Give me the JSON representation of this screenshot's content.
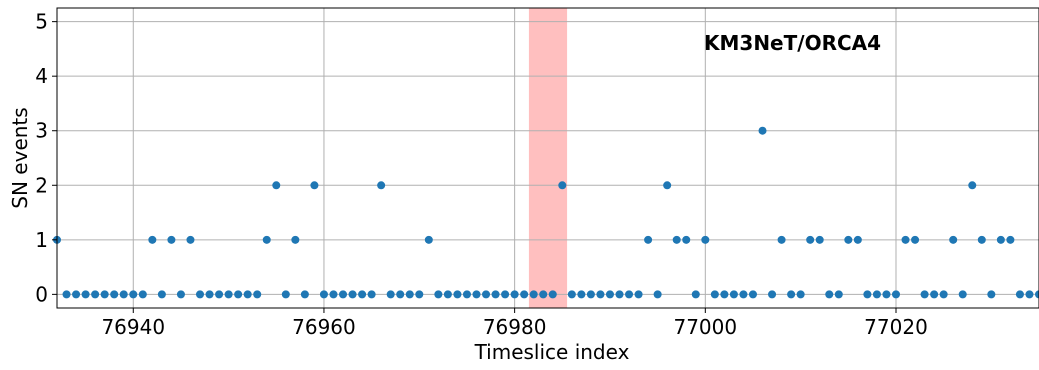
{
  "chart_data": {
    "type": "scatter",
    "title": "KM3NeT/ORCA4",
    "xlabel": "Timeslice index",
    "ylabel": "SN events",
    "xlim": [
      76932,
      77035
    ],
    "ylim": [
      -0.25,
      5.25
    ],
    "xticks": [
      76940,
      76960,
      76980,
      77000,
      77020
    ],
    "yticks": [
      0,
      1,
      2,
      3,
      4,
      5
    ],
    "grid": true,
    "marker_color": "#1f77b4",
    "highlight_region": {
      "x_start": 76981.5,
      "x_end": 76985.5,
      "color": "#ffbfbf"
    },
    "x": [
      76932,
      76933,
      76934,
      76935,
      76936,
      76937,
      76938,
      76939,
      76940,
      76941,
      76942,
      76943,
      76944,
      76945,
      76946,
      76947,
      76948,
      76949,
      76950,
      76951,
      76952,
      76953,
      76954,
      76955,
      76956,
      76957,
      76958,
      76959,
      76960,
      76961,
      76962,
      76963,
      76964,
      76965,
      76966,
      76967,
      76968,
      76969,
      76970,
      76971,
      76972,
      76973,
      76974,
      76975,
      76976,
      76977,
      76978,
      76979,
      76980,
      76981,
      76982,
      76983,
      76984,
      76985,
      76986,
      76987,
      76988,
      76989,
      76990,
      76991,
      76992,
      76993,
      76994,
      76995,
      76996,
      76997,
      76998,
      76999,
      77000,
      77001,
      77002,
      77003,
      77004,
      77005,
      77006,
      77007,
      77008,
      77009,
      77010,
      77011,
      77012,
      77013,
      77014,
      77015,
      77016,
      77017,
      77018,
      77019,
      77020,
      77021,
      77022,
      77023,
      77024,
      77025,
      77026,
      77027,
      77028,
      77029,
      77030,
      77031,
      77032,
      77033,
      77034,
      77035
    ],
    "y": [
      1,
      0,
      0,
      0,
      0,
      0,
      0,
      0,
      0,
      0,
      1,
      0,
      1,
      0,
      1,
      0,
      0,
      0,
      0,
      0,
      0,
      0,
      1,
      2,
      0,
      1,
      0,
      2,
      0,
      0,
      0,
      0,
      0,
      0,
      2,
      0,
      0,
      0,
      0,
      1,
      0,
      0,
      0,
      0,
      0,
      0,
      0,
      0,
      0,
      0,
      0,
      0,
      0,
      2,
      0,
      0,
      0,
      0,
      0,
      0,
      0,
      0,
      1,
      0,
      2,
      1,
      1,
      0,
      1,
      0,
      0,
      0,
      0,
      0,
      3,
      0,
      1,
      0,
      0,
      1,
      1,
      0,
      0,
      1,
      1,
      0,
      0,
      0,
      0,
      1,
      1,
      0,
      0,
      0,
      1,
      0,
      2,
      1,
      0,
      1,
      1,
      0,
      0,
      0
    ]
  }
}
